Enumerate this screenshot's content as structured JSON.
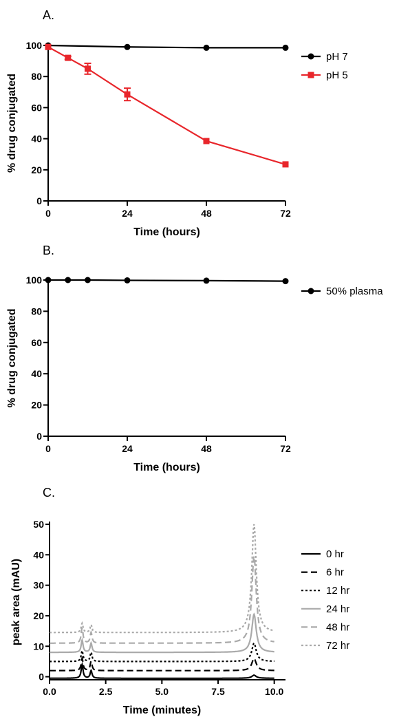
{
  "chart_data": [
    {
      "panel": "A.",
      "type": "line",
      "xlabel": "Time (hours)",
      "ylabel": "% drug conjugated",
      "xlim": [
        0,
        72
      ],
      "ylim": [
        0,
        100
      ],
      "xticks": [
        0,
        24,
        48,
        72
      ],
      "yticks": [
        0,
        20,
        40,
        60,
        80,
        100
      ],
      "legend_position": "right",
      "series": [
        {
          "name": "pH 7",
          "color": "#000000",
          "marker": "circle",
          "x": [
            0,
            24,
            48,
            72
          ],
          "y": [
            100,
            99,
            98.5,
            98.5
          ],
          "err": [
            0,
            0,
            0,
            0
          ]
        },
        {
          "name": "pH 5",
          "color": "#e8262b",
          "marker": "square",
          "x": [
            0,
            6,
            12,
            24,
            48,
            72
          ],
          "y": [
            99,
            92,
            85,
            68.5,
            38.5,
            23.5
          ],
          "err": [
            0,
            1,
            3.5,
            4,
            0,
            0
          ]
        }
      ]
    },
    {
      "panel": "B.",
      "type": "line",
      "xlabel": "Time (hours)",
      "ylabel": "% drug conjugated",
      "xlim": [
        0,
        72
      ],
      "ylim": [
        0,
        100
      ],
      "xticks": [
        0,
        24,
        48,
        72
      ],
      "yticks": [
        0,
        20,
        40,
        60,
        80,
        100
      ],
      "legend_position": "right",
      "series": [
        {
          "name": "50% plasma",
          "color": "#000000",
          "marker": "circle",
          "x": [
            0,
            6,
            12,
            24,
            48,
            72
          ],
          "y": [
            100,
            100,
            100,
            99.8,
            99.6,
            99.3
          ],
          "err": [
            0,
            0,
            0,
            0,
            0,
            0
          ]
        }
      ]
    },
    {
      "panel": "C.",
      "type": "line",
      "xlabel": "Time (minutes)",
      "ylabel": "peak area (mAU)",
      "xlim": [
        0,
        10.5
      ],
      "ylim": [
        -1,
        50
      ],
      "xticks": [
        0.0,
        2.5,
        5.0,
        7.5,
        10.0
      ],
      "xtick_labels": [
        "0.0",
        "2.5",
        "5.0",
        "7.5",
        "10.0"
      ],
      "yticks": [
        0,
        10,
        20,
        30,
        40,
        50
      ],
      "legend_position": "right",
      "peaks": [
        {
          "center": 1.45,
          "width": 0.05
        },
        {
          "center": 1.85,
          "width": 0.05
        },
        {
          "center": 9.1,
          "width": 0.12
        }
      ],
      "x_start": 0.0,
      "x_end": 10.0,
      "series": [
        {
          "name": "0 hr",
          "color": "#000000",
          "dash": "solid",
          "baseline": -0.5,
          "peak_heights": [
            4.5,
            2.5,
            1.0
          ]
        },
        {
          "name": "6 hr",
          "color": "#000000",
          "dash": "dashed",
          "baseline": 2.0,
          "peak_heights": [
            4.0,
            3.0,
            4.0
          ]
        },
        {
          "name": "12 hr",
          "color": "#000000",
          "dash": "dotted",
          "baseline": 5.0,
          "peak_heights": [
            3.5,
            3.0,
            6.0
          ]
        },
        {
          "name": "24 hr",
          "color": "#aaaaaa",
          "dash": "solid",
          "baseline": 8.0,
          "peak_heights": [
            4.0,
            3.0,
            12.5
          ]
        },
        {
          "name": "48 hr",
          "color": "#aaaaaa",
          "dash": "dashed",
          "baseline": 11.0,
          "peak_heights": [
            5.0,
            3.5,
            28.5
          ]
        },
        {
          "name": "72 hr",
          "color": "#aaaaaa",
          "dash": "dotted",
          "baseline": 14.5,
          "peak_heights": [
            3.0,
            2.5,
            35.5
          ]
        }
      ]
    }
  ]
}
